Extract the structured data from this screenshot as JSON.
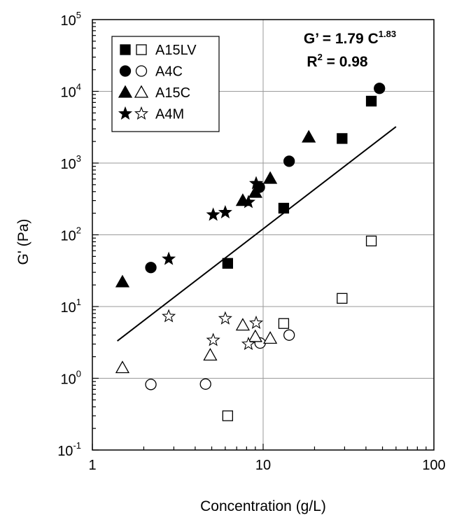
{
  "chart_data": {
    "type": "scatter",
    "xlabel": "Concentration (g/L)",
    "ylabel": "G' (Pa)",
    "x_scale": "log",
    "y_scale": "log",
    "xlim": [
      1,
      100
    ],
    "ylim": [
      0.1,
      100000
    ],
    "x_ticks": [
      {
        "value": 1,
        "label": "1"
      },
      {
        "value": 10,
        "label": "10"
      },
      {
        "value": 100,
        "label": "100"
      }
    ],
    "y_ticks": [
      {
        "value": 0.1,
        "base": "10",
        "exp": "-1"
      },
      {
        "value": 1,
        "base": "10",
        "exp": "0"
      },
      {
        "value": 10,
        "base": "10",
        "exp": "1"
      },
      {
        "value": 100,
        "base": "10",
        "exp": "2"
      },
      {
        "value": 1000,
        "base": "10",
        "exp": "3"
      },
      {
        "value": 10000,
        "base": "10",
        "exp": "4"
      },
      {
        "value": 100000,
        "base": "10",
        "exp": "5"
      }
    ],
    "grid": true,
    "legend_position": "top-left",
    "series": [
      {
        "name": "A15LV",
        "marker": "square",
        "filled": [
          [
            6.2,
            40
          ],
          [
            13.2,
            235
          ],
          [
            29,
            2200
          ],
          [
            43,
            7300
          ]
        ],
        "open": [
          [
            6.2,
            0.3
          ],
          [
            13.2,
            5.8
          ],
          [
            29,
            13
          ],
          [
            43,
            82
          ]
        ]
      },
      {
        "name": "A4C",
        "marker": "circle",
        "filled": [
          [
            2.2,
            35
          ],
          [
            9.5,
            460
          ],
          [
            14.2,
            1060
          ],
          [
            48,
            11000
          ]
        ],
        "open": [
          [
            2.2,
            0.82
          ],
          [
            4.6,
            0.83
          ],
          [
            9.6,
            3.1
          ],
          [
            14.2,
            4.0
          ]
        ]
      },
      {
        "name": "A15C",
        "marker": "triangle",
        "filled": [
          [
            1.5,
            22
          ],
          [
            7.6,
            300
          ],
          [
            9,
            390
          ],
          [
            11,
            610
          ],
          [
            18.5,
            2300
          ]
        ],
        "open": [
          [
            1.5,
            1.4
          ],
          [
            4.9,
            2.1
          ],
          [
            7.6,
            5.5
          ],
          [
            9,
            3.8
          ],
          [
            11,
            3.6
          ]
        ]
      },
      {
        "name": "A4M",
        "marker": "star",
        "filled": [
          [
            2.8,
            46
          ],
          [
            5.1,
            190
          ],
          [
            6,
            205
          ],
          [
            8.2,
            285
          ],
          [
            9.1,
            520
          ]
        ],
        "open": [
          [
            2.8,
            7.3
          ],
          [
            5.1,
            3.4
          ],
          [
            6,
            6.8
          ],
          [
            8.2,
            3.0
          ],
          [
            9.1,
            5.9
          ]
        ]
      }
    ],
    "fit_line": {
      "x_start": 1.4,
      "x_end": 60,
      "coefficient": 1.79,
      "exponent": 1.83
    },
    "annotation": {
      "equation_main": "G’ = 1.79 C",
      "equation_exp": "1.83",
      "r2_main": "R",
      "r2_sup": "2",
      "r2_rest": " = 0.98"
    }
  }
}
